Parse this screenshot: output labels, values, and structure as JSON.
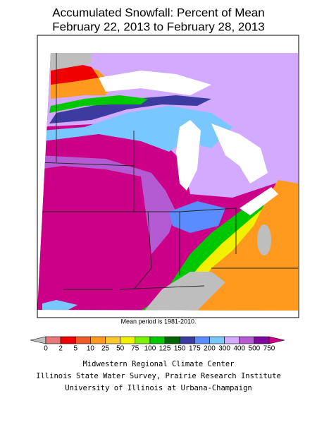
{
  "header": {
    "title_lines": [
      "Accumulated Snowfall: Percent of Mean",
      "February 22, 2013 to February 28, 2013"
    ]
  },
  "map": {
    "note": "Mean period is 1981-2010."
  },
  "legend": {
    "labels": [
      "0",
      "2",
      "5",
      "10",
      "25",
      "50",
      "75",
      "100",
      "125",
      "150",
      "175",
      "200",
      "300",
      "400",
      "500",
      "750"
    ],
    "colors": [
      "#bebebe",
      "#e87878",
      "#f00000",
      "#f05a28",
      "#ff9a1e",
      "#ffc832",
      "#f0f000",
      "#78f000",
      "#00c800",
      "#006400",
      "#3c3ca0",
      "#5a8cff",
      "#78c8ff",
      "#d2aaff",
      "#b45ad2",
      "#7d0a9b",
      "#cc0088"
    ]
  },
  "footer": {
    "lines": [
      "Midwestern Regional Climate Center",
      "Illinois State Water Survey, Prairie Research Institute",
      "University of Illinois at Urbana-Champaign"
    ]
  }
}
